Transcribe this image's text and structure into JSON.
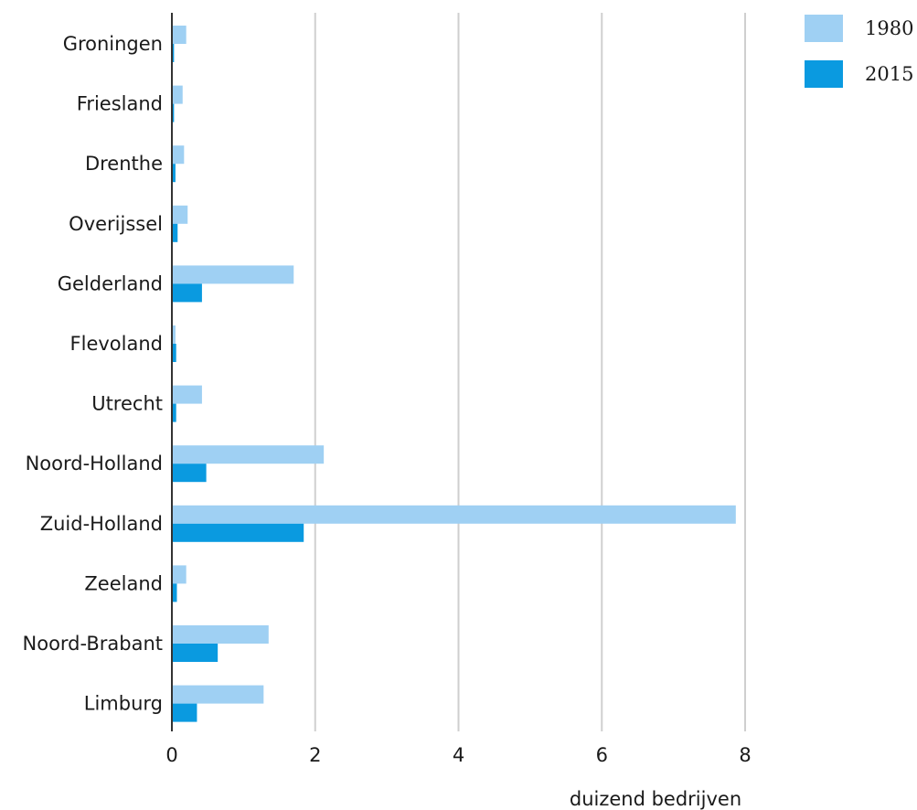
{
  "chart_data": {
    "type": "bar",
    "orientation": "horizontal",
    "categories": [
      "Groningen",
      "Friesland",
      "Drenthe",
      "Overijssel",
      "Gelderland",
      "Flevoland",
      "Utrecht",
      "Noord-Holland",
      "Zuid-Holland",
      "Zeeland",
      "Noord-Brabant",
      "Limburg"
    ],
    "series": [
      {
        "name": "1980",
        "color": "#9fd0f3",
        "values": [
          0.2,
          0.15,
          0.17,
          0.22,
          1.7,
          0.05,
          0.42,
          2.12,
          7.87,
          0.2,
          1.35,
          1.28
        ]
      },
      {
        "name": "2015",
        "color": "#0a9ae0",
        "values": [
          0.03,
          0.03,
          0.05,
          0.08,
          0.42,
          0.06,
          0.06,
          0.48,
          1.84,
          0.07,
          0.64,
          0.35
        ]
      }
    ],
    "xlabel": "duizend bedrijven",
    "xlim": [
      0,
      8
    ],
    "xticks": [
      "0",
      "2",
      "4",
      "6",
      "8"
    ],
    "grid": "vertical",
    "legend": "top-right"
  }
}
